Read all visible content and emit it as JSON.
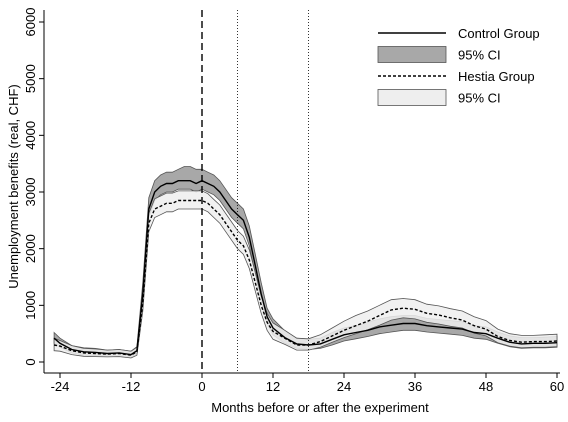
{
  "chart_data": {
    "type": "line",
    "title": "",
    "xlabel": "Months before or after the experiment",
    "ylabel": "Unemployment benefits (real, CHF)",
    "xlim": [
      -24,
      60
    ],
    "ylim": [
      0,
      6000
    ],
    "x_ticks": [
      -24,
      -12,
      0,
      12,
      24,
      36,
      48,
      60
    ],
    "y_ticks": [
      0,
      1000,
      2000,
      3000,
      4000,
      5000,
      6000
    ],
    "grid": false,
    "legend_position": "top-right",
    "vlines": [
      {
        "x": 0,
        "style": "dashed"
      },
      {
        "x": 6,
        "style": "dotted"
      },
      {
        "x": 18,
        "style": "dotted"
      }
    ],
    "x": [
      -25,
      -24,
      -22,
      -20,
      -18,
      -16,
      -14,
      -12,
      -11,
      -10,
      -9,
      -8,
      -7,
      -6,
      -5,
      -4,
      -3,
      -2,
      -1,
      0,
      1,
      2,
      3,
      4,
      5,
      6,
      7,
      8,
      9,
      10,
      11,
      12,
      14,
      16,
      18,
      20,
      22,
      24,
      26,
      28,
      30,
      32,
      34,
      36,
      38,
      40,
      42,
      44,
      46,
      48,
      50,
      52,
      54,
      56,
      58,
      60
    ],
    "series": [
      {
        "name": "Control Group",
        "line_style": "solid",
        "color": "#000000",
        "values": [
          420,
          330,
          220,
          180,
          170,
          150,
          160,
          130,
          200,
          1200,
          2700,
          3000,
          3100,
          3150,
          3150,
          3200,
          3200,
          3200,
          3150,
          3200,
          3150,
          3100,
          3000,
          2850,
          2700,
          2600,
          2500,
          2200,
          1700,
          1200,
          800,
          600,
          430,
          320,
          300,
          320,
          400,
          480,
          520,
          560,
          620,
          650,
          680,
          680,
          640,
          620,
          600,
          580,
          520,
          500,
          420,
          350,
          320,
          330,
          330,
          340
        ],
        "ci": {
          "name": "95% CI",
          "fill": "#a8a8a8",
          "lower": [
            330,
            260,
            160,
            120,
            110,
            95,
            100,
            80,
            150,
            1050,
            2550,
            2850,
            2950,
            3000,
            3000,
            3050,
            3050,
            3050,
            3000,
            3050,
            3000,
            2950,
            2850,
            2700,
            2550,
            2450,
            2350,
            2050,
            1550,
            1050,
            680,
            480,
            330,
            240,
            220,
            240,
            300,
            370,
            410,
            450,
            500,
            530,
            560,
            560,
            530,
            510,
            490,
            470,
            420,
            400,
            330,
            270,
            240,
            250,
            250,
            260
          ],
          "upper": [
            520,
            420,
            290,
            250,
            240,
            210,
            220,
            190,
            270,
            1400,
            2900,
            3200,
            3300,
            3350,
            3350,
            3400,
            3450,
            3450,
            3400,
            3400,
            3350,
            3300,
            3200,
            3050,
            2900,
            2800,
            2700,
            2400,
            1900,
            1400,
            950,
            760,
            550,
            420,
            400,
            420,
            520,
            600,
            640,
            700,
            760,
            800,
            820,
            820,
            770,
            750,
            730,
            710,
            640,
            620,
            530,
            460,
            430,
            430,
            440,
            450
          ]
        }
      },
      {
        "name": "Hestia Group",
        "line_style": "dashed",
        "color": "#000000",
        "values": [
          300,
          280,
          200,
          160,
          150,
          140,
          150,
          120,
          180,
          1050,
          2450,
          2700,
          2750,
          2800,
          2800,
          2850,
          2850,
          2850,
          2850,
          2850,
          2800,
          2700,
          2600,
          2450,
          2300,
          2150,
          2050,
          1800,
          1400,
          1000,
          700,
          540,
          420,
          300,
          300,
          360,
          460,
          560,
          640,
          720,
          820,
          920,
          950,
          930,
          860,
          830,
          780,
          740,
          640,
          580,
          450,
          380,
          350,
          360,
          360,
          370
        ],
        "ci": {
          "name": "95% CI",
          "fill": "#eeeeee",
          "lower": [
            200,
            190,
            130,
            100,
            95,
            90,
            95,
            70,
            120,
            900,
            2300,
            2550,
            2600,
            2650,
            2650,
            2700,
            2700,
            2700,
            2700,
            2700,
            2650,
            2550,
            2450,
            2300,
            2150,
            2000,
            1900,
            1650,
            1250,
            860,
            560,
            400,
            310,
            210,
            210,
            260,
            350,
            430,
            500,
            570,
            650,
            740,
            780,
            760,
            700,
            670,
            630,
            600,
            510,
            460,
            340,
            280,
            250,
            260,
            260,
            270
          ],
          "upper": [
            420,
            380,
            290,
            240,
            230,
            210,
            220,
            190,
            260,
            1220,
            2620,
            2880,
            2930,
            2980,
            2980,
            3020,
            3020,
            3020,
            3020,
            3020,
            2970,
            2870,
            2770,
            2620,
            2470,
            2320,
            2220,
            1980,
            1580,
            1160,
            860,
            690,
            560,
            420,
            410,
            480,
            600,
            720,
            820,
            900,
            1000,
            1100,
            1120,
            1100,
            1020,
            990,
            940,
            900,
            800,
            730,
            580,
            500,
            470,
            470,
            480,
            490
          ]
        }
      }
    ]
  }
}
